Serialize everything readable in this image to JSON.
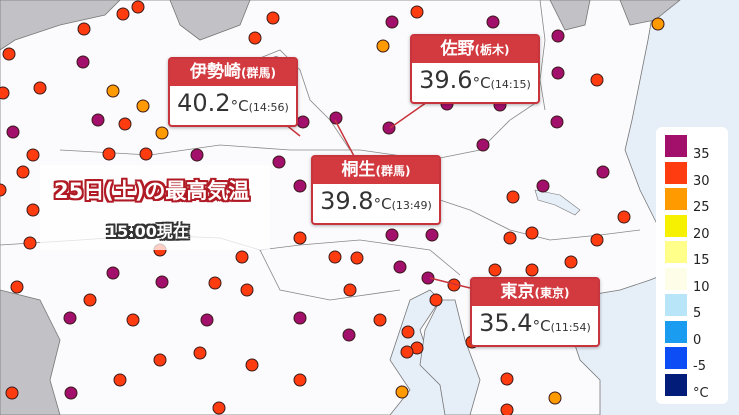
{
  "title": {
    "line1": "25日(土)の最高気温",
    "line2": "15:00現在"
  },
  "callouts": [
    {
      "place": "伊勢崎",
      "pref": "(群馬)",
      "temp": "40.2",
      "unit": "°C",
      "time": "(14:56)"
    },
    {
      "place": "佐野",
      "pref": "(栃木)",
      "temp": "39.6",
      "unit": "°C",
      "time": "(14:15)"
    },
    {
      "place": "桐生",
      "pref": "(群馬)",
      "temp": "39.8",
      "unit": "°C",
      "time": "(13:49)"
    },
    {
      "place": "東京",
      "pref": "(東京)",
      "temp": "35.4",
      "unit": "°C",
      "time": "(11:54)"
    }
  ],
  "legend": {
    "colors": [
      "#a3106c",
      "#ff3b10",
      "#ff9a00",
      "#f6f100",
      "#ffff8a",
      "#fdfde8",
      "#b8e6f8",
      "#1a9cf0",
      "#0c4df5",
      "#021c7a"
    ],
    "labels": [
      "35",
      "30",
      "25",
      "20",
      "15",
      "10",
      "5",
      "0",
      "-5",
      "°C"
    ]
  },
  "colors": {
    "purple": "#a3106c",
    "red": "#ff3b10",
    "orange": "#ff9a00",
    "sea": "#e6eef8",
    "land": "#fbfbfd",
    "other": "#c2c2c6",
    "callout": "#d23a40"
  }
}
